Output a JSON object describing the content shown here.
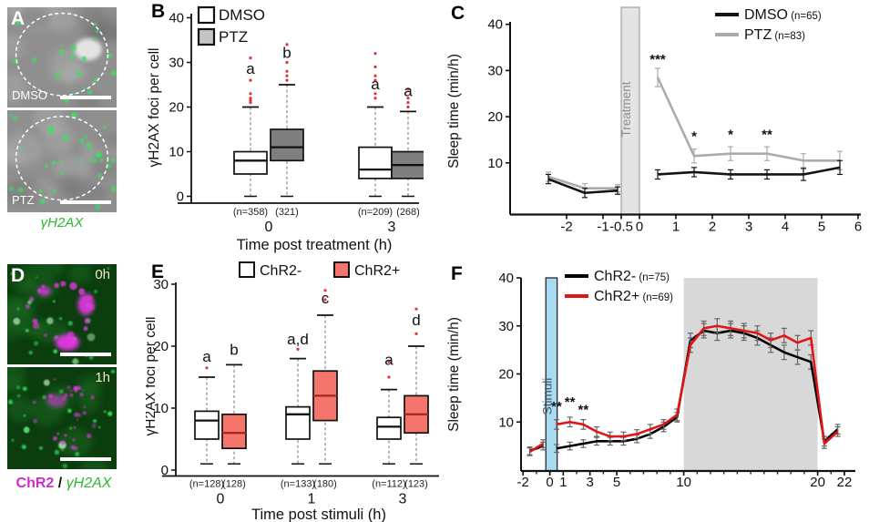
{
  "figure": {
    "panels": {
      "A": {
        "label": "A",
        "images": [
          {
            "tag": "DMSO"
          },
          {
            "tag": "PTZ"
          }
        ],
        "caption": "γH2AX"
      },
      "B": {
        "label": "B"
      },
      "C": {
        "label": "C"
      },
      "D": {
        "label": "D",
        "images": [
          {
            "tag": "0h"
          },
          {
            "tag": "1h"
          }
        ],
        "caption": {
          "chr2": "ChR2",
          "sep": " / ",
          "gh2ax": "γH2AX"
        }
      },
      "E": {
        "label": "E"
      },
      "F": {
        "label": "F"
      }
    },
    "colors": {
      "outlier_red": "#e63232",
      "microA_bg": "#8f8f8f",
      "foci_green": "#3ce060",
      "microD_bg": "#0b3d0e",
      "chr2_magenta": "#e637e6",
      "caption_green": "#2eb82e",
      "caption_magenta": "#cc2ecc",
      "box_gray": "#7f7f7f",
      "box_salmon": "#f4756b",
      "line_gray": "#ababab",
      "line_red": "#e01616",
      "treatment_band": "#e4e4e4",
      "stimuli_band": "#a8daf2",
      "dark_band": "#d8d8d8"
    }
  },
  "chart_data": [
    {
      "id": "B",
      "type": "boxplot",
      "ylabel": "γH2AX foci per cell",
      "xlabel": "Time post treatment (h)",
      "ylim": [
        0,
        40
      ],
      "yticks": [
        0,
        10,
        20,
        30,
        40
      ],
      "categories": [
        "0",
        "3"
      ],
      "legend": [
        {
          "label": "DMSO",
          "fill": "#ffffff"
        },
        {
          "label": "PTZ",
          "fill": "#c4c4c4"
        }
      ],
      "boxes": [
        {
          "group": "DMSO",
          "category": "0",
          "n_label": "(n=358)",
          "low": 0,
          "q1": 5,
          "median": 8,
          "q3": 10,
          "high": 20,
          "outliers": [
            21,
            21.5,
            22,
            23,
            26,
            31
          ],
          "letter": "a",
          "letter_y": 27.5,
          "fill": "#ffffff"
        },
        {
          "group": "PTZ",
          "category": "0",
          "n_label": "(321)",
          "low": 0,
          "q1": 8,
          "median": 11,
          "q3": 15,
          "high": 25,
          "outliers": [
            26,
            27,
            28,
            30,
            34
          ],
          "letter": "b",
          "letter_y": 31,
          "fill": "#7f7f7f"
        },
        {
          "group": "DMSO",
          "category": "3",
          "n_label": "(n=209)",
          "low": 0,
          "q1": 4,
          "median": 6,
          "q3": 11,
          "high": 20,
          "outliers": [
            22,
            23,
            26,
            27,
            29,
            32
          ],
          "letter": "a",
          "letter_y": 24,
          "fill": "#ffffff"
        },
        {
          "group": "PTZ",
          "category": "3",
          "n_label": "(268)",
          "low": 0,
          "q1": 4,
          "median": 7,
          "q3": 10,
          "high": 19,
          "outliers": [
            20,
            21,
            22,
            24
          ],
          "letter": "a",
          "letter_y": 22.4,
          "fill": "#7f7f7f"
        }
      ]
    },
    {
      "id": "C",
      "type": "line",
      "ylabel": "Sleep time (min/h)",
      "xlabel": "Time (h)",
      "ylim": [
        0,
        40
      ],
      "yticks": [
        10,
        20,
        30,
        40
      ],
      "xticks": [
        {
          "v": -2,
          "label": "-2"
        },
        {
          "v": -1,
          "label": "-1"
        },
        {
          "v": -0.5,
          "label": "-0.5"
        },
        {
          "v": 0,
          "label": "0"
        },
        {
          "v": 1,
          "label": "1"
        },
        {
          "v": 2,
          "label": "2"
        },
        {
          "v": 3,
          "label": "3"
        },
        {
          "v": 4,
          "label": "4"
        },
        {
          "v": 5,
          "label": "5"
        },
        {
          "v": 6,
          "label": "6"
        }
      ],
      "band": {
        "label": "Treatment",
        "x0": -0.5,
        "x1": 0,
        "color": "#e4e4e4",
        "stroke": "#a0a0a0",
        "label_color": "#8f8f8f"
      },
      "series": [
        {
          "name": "DMSO",
          "n_label": "(n=65)",
          "color": "#141414",
          "x": [
            -2.5,
            -1.5,
            -0.6,
            0.5,
            1.5,
            2.5,
            3.5,
            4.5,
            5.5
          ],
          "y": [
            6.5,
            3.5,
            4,
            7.5,
            8,
            7.5,
            7.5,
            7.5,
            9
          ],
          "err": [
            1,
            1,
            0.8,
            1,
            1,
            1,
            1,
            1.3,
            1.5
          ]
        },
        {
          "name": "PTZ",
          "n_label": "(n=83)",
          "color": "#ababab",
          "x": [
            -2.5,
            -1.5,
            -0.6,
            0.5,
            1.5,
            2.5,
            3.5,
            4.5,
            5.5
          ],
          "y": [
            7,
            4.5,
            4.5,
            28.5,
            11.5,
            12,
            12,
            10.5,
            10.5
          ],
          "err": [
            1,
            1,
            0.8,
            2,
            1.5,
            1.5,
            1.5,
            1.5,
            2
          ]
        }
      ],
      "annotations": [
        {
          "text": "***",
          "x": 0.5,
          "y": 31.5
        },
        {
          "text": "*",
          "x": 1.5,
          "y": 14.8
        },
        {
          "text": "*",
          "x": 2.5,
          "y": 15.2
        },
        {
          "text": "**",
          "x": 3.5,
          "y": 15.2
        }
      ]
    },
    {
      "id": "E",
      "type": "boxplot",
      "ylabel": "γH2AX foci per cell",
      "xlabel": "Time post stimuli (h)",
      "ylim": [
        0,
        30
      ],
      "yticks": [
        0,
        10,
        20,
        30
      ],
      "categories": [
        "0",
        "1",
        "3"
      ],
      "legend": [
        {
          "label": "ChR2-",
          "fill": "#ffffff"
        },
        {
          "label": "ChR2+",
          "fill": "#f4756b"
        }
      ],
      "boxes": [
        {
          "group": "ChR2-",
          "category": "0",
          "n_label": "(n=128)",
          "low": 1,
          "q1": 5,
          "median": 8,
          "q3": 9.5,
          "high": 15,
          "outliers": [
            16.5
          ],
          "letter": "a",
          "letter_y": 17.5,
          "fill": "#ffffff"
        },
        {
          "group": "ChR2+",
          "category": "0",
          "n_label": "(128)",
          "low": 1,
          "q1": 3.5,
          "median": 6,
          "q3": 9,
          "high": 17,
          "outliers": [],
          "letter": "b",
          "letter_y": 18.6,
          "fill": "#f4756b"
        },
        {
          "group": "ChR2-",
          "category": "1",
          "n_label": "(n=133)",
          "low": 1,
          "q1": 5,
          "median": 9,
          "q3": 10.2,
          "high": 18,
          "outliers": [
            19.5
          ],
          "letter": "a,d",
          "letter_y": 20.3,
          "fill": "#ffffff"
        },
        {
          "group": "ChR2+",
          "category": "1",
          "n_label": "(180)",
          "low": 1,
          "q1": 8,
          "median": 12,
          "q3": 16,
          "high": 25,
          "outliers": [
            27.5,
            29
          ],
          "letter": "c",
          "letter_y": 26.9,
          "fill": "#f4756b"
        },
        {
          "group": "ChR2-",
          "category": "3",
          "n_label": "(n=112)",
          "low": 1,
          "q1": 5,
          "median": 7,
          "q3": 8.5,
          "high": 13,
          "outliers": [
            15,
            17.5
          ],
          "letter": "a",
          "letter_y": 17,
          "fill": "#ffffff"
        },
        {
          "group": "ChR2+",
          "category": "3",
          "n_label": "(123)",
          "low": 1,
          "q1": 6,
          "median": 9,
          "q3": 12,
          "high": 20,
          "outliers": [
            22,
            26
          ],
          "letter": "d",
          "letter_y": 23.4,
          "fill": "#f4756b"
        }
      ]
    },
    {
      "id": "F",
      "type": "line",
      "ylabel": "Sleep time (min/h)",
      "xlabel": "Time (h)",
      "ylim": [
        0,
        40
      ],
      "yticks": [
        10,
        20,
        30,
        40
      ],
      "xticks_minor_range": [
        -2,
        22
      ],
      "xticks": [
        {
          "v": -2,
          "label": "-2"
        },
        {
          "v": 0,
          "label": "0"
        },
        {
          "v": 1,
          "label": "1"
        },
        {
          "v": 3,
          "label": "3"
        },
        {
          "v": 5,
          "label": "5"
        },
        {
          "v": 10,
          "label": "10"
        },
        {
          "v": 20,
          "label": "20"
        },
        {
          "v": 22,
          "label": "22"
        }
      ],
      "band": {
        "label": "Stimuli",
        "x0": -0.3,
        "x1": 0.55,
        "color": "#a8daf2",
        "stroke": "#1a1a1a",
        "label_color": "#445566"
      },
      "dark_band": {
        "x0": 10,
        "x1": 20,
        "color": "#d8d8d8"
      },
      "series": [
        {
          "name": "ChR2-",
          "n_label": "(n=75)",
          "color": "#000000",
          "err_color": "#666666",
          "x": [
            -1.5,
            -0.5,
            0.5,
            1.5,
            2.5,
            3.5,
            4.5,
            5.5,
            6.5,
            7.5,
            8.5,
            9.5,
            10.5,
            11.5,
            12.5,
            13.5,
            14.5,
            15.5,
            16.5,
            17.5,
            18.5,
            19.5,
            20.5,
            21.5
          ],
          "y": [
            4,
            5,
            4.5,
            5,
            5.5,
            6,
            6,
            6,
            6.5,
            7.5,
            9,
            11,
            27,
            29,
            28.5,
            29,
            28.5,
            27.5,
            26,
            24.5,
            23.5,
            22.5,
            6,
            8.5
          ],
          "err": [
            0.8,
            0.8,
            0.8,
            0.8,
            0.8,
            0.8,
            0.8,
            0.8,
            0.8,
            0.9,
            1,
            1,
            1.5,
            1.5,
            1.5,
            1.5,
            1.5,
            1.5,
            1.5,
            1.5,
            1.5,
            1.5,
            1,
            1
          ]
        },
        {
          "name": "ChR2+",
          "n_label": "(n=69)",
          "color": "#e01616",
          "err_color": "#666666",
          "x": [
            -1.5,
            -0.5,
            0.5,
            1.5,
            2.5,
            3.5,
            4.5,
            5.5,
            6.5,
            7.5,
            8.5,
            9.5,
            10.5,
            11.5,
            12.5,
            13.5,
            14.5,
            15.5,
            16.5,
            17.5,
            18.5,
            19.5,
            20.5,
            21.5
          ],
          "y": [
            3.8,
            5.5,
            9.5,
            10,
            9.5,
            8,
            7,
            7,
            7.5,
            8.5,
            9.5,
            11.5,
            26,
            29.5,
            30,
            29.5,
            29,
            28.5,
            27,
            28,
            26.5,
            27.5,
            5.5,
            8
          ],
          "err": [
            0.8,
            0.8,
            1,
            1,
            1,
            1,
            0.9,
            0.9,
            0.9,
            1,
            1,
            1.2,
            1.5,
            1.5,
            1.5,
            1.5,
            1.5,
            1.5,
            1.5,
            1.5,
            1.5,
            1.5,
            1,
            1
          ]
        }
      ],
      "annotations": [
        {
          "text": "**",
          "x": 0.5,
          "y": 12.3
        },
        {
          "text": "**",
          "x": 1.5,
          "y": 13.3
        },
        {
          "text": "**",
          "x": 2.5,
          "y": 11.7
        }
      ]
    }
  ]
}
